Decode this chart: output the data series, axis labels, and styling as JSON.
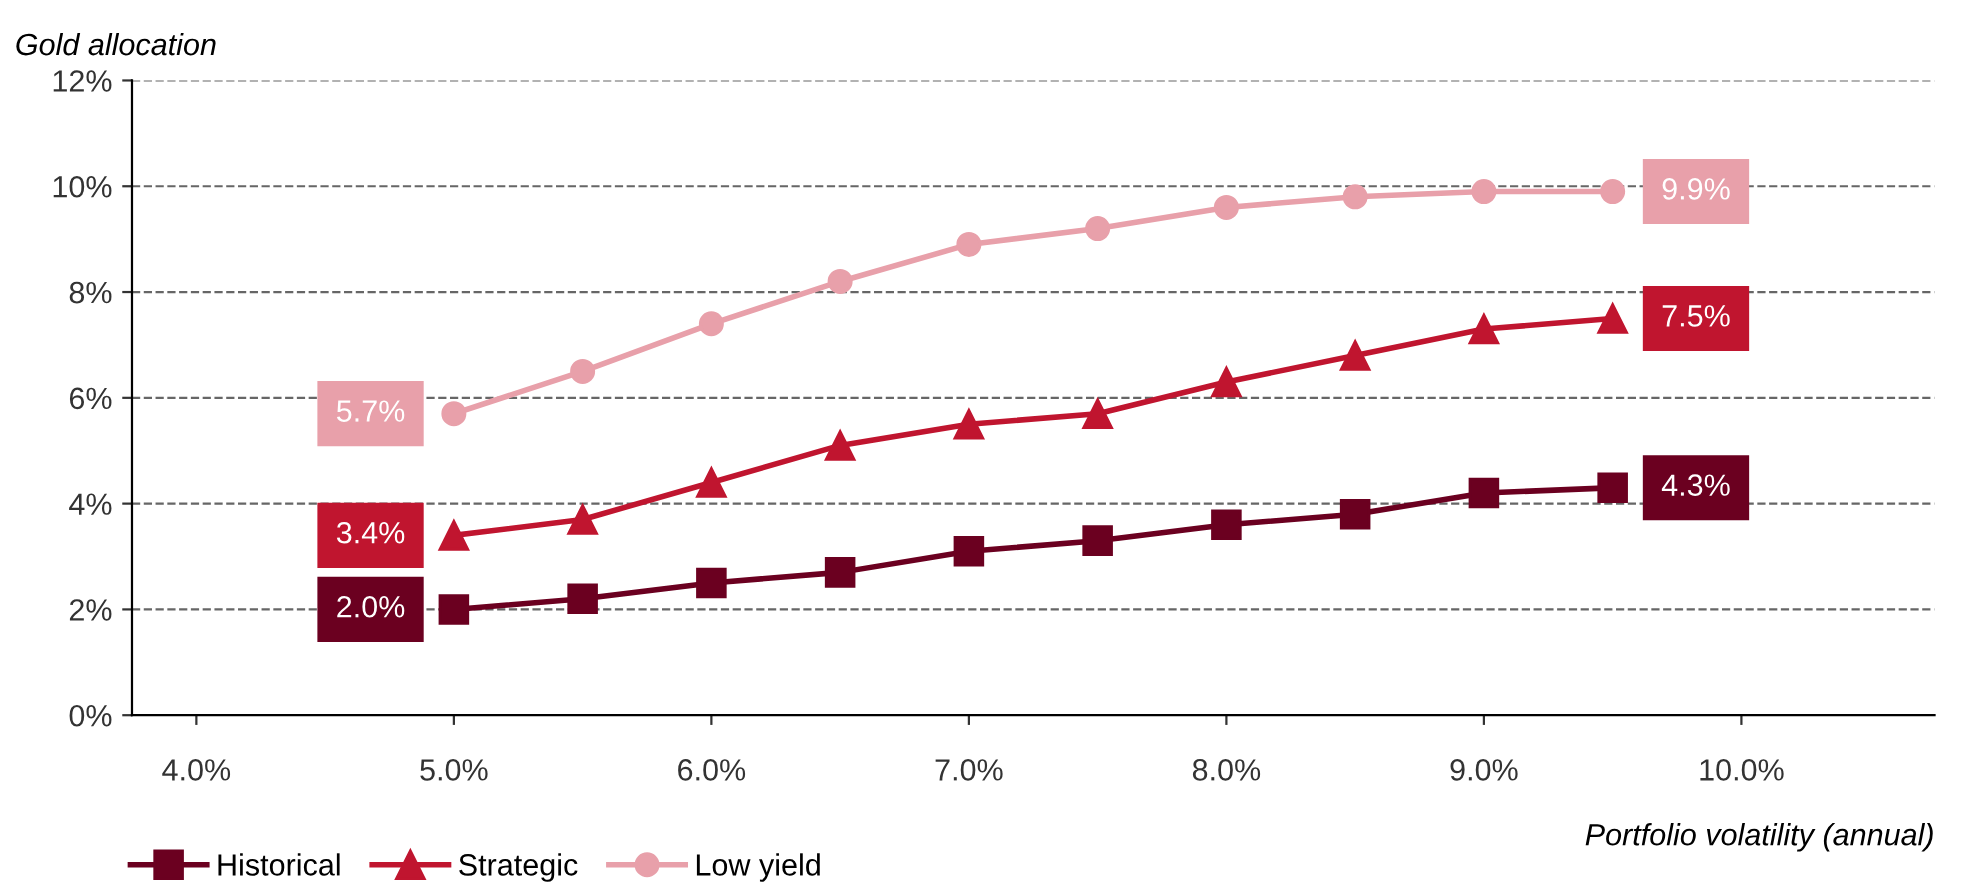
{
  "chart_data": {
    "type": "line",
    "xlabel": "Portfolio volatility (annual)",
    "ylabel": "Gold allocation",
    "x": [
      5.0,
      5.5,
      6.0,
      6.5,
      7.0,
      7.5,
      8.0,
      8.5,
      9.0,
      9.5
    ],
    "series": [
      {
        "name": "Historical",
        "color": "#6b0020",
        "marker": "square",
        "values": [
          2.0,
          2.2,
          2.5,
          2.7,
          3.1,
          3.3,
          3.6,
          3.8,
          4.2,
          4.3
        ],
        "value_labels": [
          "2.0%",
          null,
          null,
          null,
          null,
          null,
          null,
          null,
          null,
          "4.3%"
        ]
      },
      {
        "name": "Strategic",
        "color": "#c0152f",
        "marker": "triangle",
        "values": [
          3.4,
          3.7,
          4.4,
          5.1,
          5.5,
          5.7,
          6.3,
          6.8,
          7.3,
          7.5
        ],
        "value_labels": [
          "3.4%",
          null,
          null,
          null,
          null,
          null,
          null,
          null,
          null,
          "7.5%"
        ]
      },
      {
        "name": "Low yield",
        "color": "#e8a0aa",
        "marker": "circle",
        "values": [
          5.7,
          6.5,
          7.4,
          8.2,
          8.9,
          9.2,
          9.6,
          9.8,
          9.9,
          9.9
        ],
        "value_labels": [
          "5.7%",
          null,
          null,
          null,
          null,
          null,
          null,
          null,
          null,
          "9.9%"
        ]
      }
    ],
    "xlim": [
      3.75,
      10.75
    ],
    "xticks": [
      {
        "value": 4,
        "label": "4.0%"
      },
      {
        "value": 5,
        "label": "5.0%"
      },
      {
        "value": 6,
        "label": "6.0%"
      },
      {
        "value": 7,
        "label": "7.0%"
      },
      {
        "value": 8,
        "label": "8.0%"
      },
      {
        "value": 9,
        "label": "9.0%"
      },
      {
        "value": 10,
        "label": "10.0%"
      }
    ],
    "ylim": [
      0,
      12
    ],
    "yticks": [
      {
        "value": 0,
        "label": "0%"
      },
      {
        "value": 2,
        "label": "2%"
      },
      {
        "value": 4,
        "label": "4%"
      },
      {
        "value": 6,
        "label": "6%"
      },
      {
        "value": 8,
        "label": "8%"
      },
      {
        "value": 10,
        "label": "10%"
      },
      {
        "value": 12,
        "label": "12%"
      }
    ],
    "grid": "y",
    "legend": "bottom left",
    "line_style": "solid"
  }
}
